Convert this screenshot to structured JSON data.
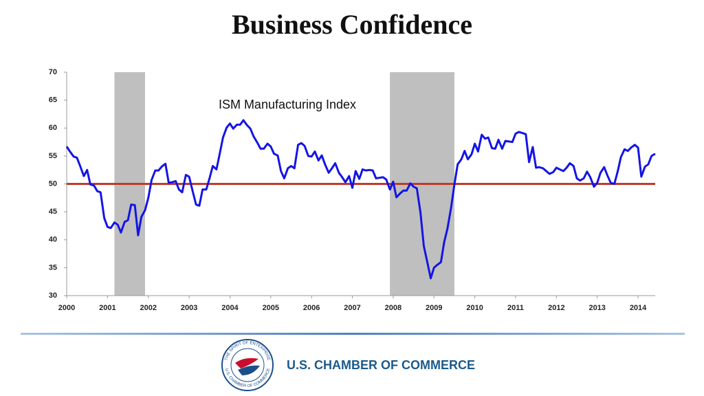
{
  "chart_data": {
    "type": "line",
    "title": "Business Confidence",
    "x": [
      2000,
      2000.08,
      2000.17,
      2000.25,
      2000.33,
      2000.42,
      2000.5,
      2000.58,
      2000.67,
      2000.75,
      2000.83,
      2000.92,
      2001,
      2001.08,
      2001.17,
      2001.25,
      2001.33,
      2001.42,
      2001.5,
      2001.58,
      2001.67,
      2001.75,
      2001.83,
      2001.92,
      2002,
      2002.08,
      2002.17,
      2002.25,
      2002.33,
      2002.42,
      2002.5,
      2002.58,
      2002.67,
      2002.75,
      2002.83,
      2002.92,
      2003,
      2003.08,
      2003.17,
      2003.25,
      2003.33,
      2003.42,
      2003.5,
      2003.58,
      2003.67,
      2003.75,
      2003.83,
      2003.92,
      2004,
      2004.08,
      2004.17,
      2004.25,
      2004.33,
      2004.42,
      2004.5,
      2004.58,
      2004.67,
      2004.75,
      2004.83,
      2004.92,
      2005,
      2005.08,
      2005.17,
      2005.25,
      2005.33,
      2005.42,
      2005.5,
      2005.58,
      2005.67,
      2005.75,
      2005.83,
      2005.92,
      2006,
      2006.08,
      2006.17,
      2006.25,
      2006.33,
      2006.42,
      2006.5,
      2006.58,
      2006.67,
      2006.75,
      2006.83,
      2006.92,
      2007,
      2007.08,
      2007.17,
      2007.25,
      2007.33,
      2007.42,
      2007.5,
      2007.58,
      2007.67,
      2007.75,
      2007.83,
      2007.92,
      2008,
      2008.08,
      2008.17,
      2008.25,
      2008.33,
      2008.42,
      2008.5,
      2008.58,
      2008.67,
      2008.75,
      2008.83,
      2008.92,
      2009,
      2009.08,
      2009.17,
      2009.25,
      2009.33,
      2009.42,
      2009.5,
      2009.58,
      2009.67,
      2009.75,
      2009.83,
      2009.92,
      2010,
      2010.08,
      2010.17,
      2010.25,
      2010.33,
      2010.42,
      2010.5,
      2010.58,
      2010.67,
      2010.75,
      2010.83,
      2010.92,
      2011,
      2011.08,
      2011.17,
      2011.25,
      2011.33,
      2011.42,
      2011.5,
      2011.58,
      2011.67,
      2011.75,
      2011.83,
      2011.92,
      2012,
      2012.08,
      2012.17,
      2012.25,
      2012.33,
      2012.42,
      2012.5,
      2012.58,
      2012.67,
      2012.75,
      2012.83,
      2012.92,
      2013,
      2013.08,
      2013.17,
      2013.25,
      2013.33,
      2013.42,
      2013.5,
      2013.58,
      2013.67,
      2013.75,
      2013.83,
      2013.92,
      2014,
      2014.08,
      2014.17,
      2014.25,
      2014.33,
      2014.42
    ],
    "series": [
      {
        "name": "ISM Manufacturing Index",
        "color": "#1414e6",
        "values": [
          56.7,
          55.8,
          54.9,
          54.7,
          53.2,
          51.4,
          52.5,
          49.9,
          49.7,
          48.7,
          48.5,
          43.9,
          42.3,
          42.1,
          43.1,
          42.7,
          41.3,
          43.2,
          43.5,
          46.3,
          46.2,
          40.8,
          44.1,
          45.3,
          47.5,
          50.7,
          52.4,
          52.4,
          53.1,
          53.6,
          50.2,
          50.3,
          50.5,
          49.0,
          48.5,
          51.6,
          51.3,
          48.9,
          46.3,
          46.1,
          49.0,
          49.0,
          51.0,
          53.2,
          52.6,
          55.4,
          58.3,
          60.1,
          60.8,
          59.9,
          60.6,
          60.6,
          61.4,
          60.5,
          59.9,
          58.5,
          57.4,
          56.3,
          56.3,
          57.2,
          56.7,
          55.4,
          55.1,
          52.3,
          51.0,
          52.8,
          53.2,
          52.8,
          57.0,
          57.3,
          56.8,
          55.0,
          54.9,
          55.8,
          54.2,
          55.1,
          53.5,
          52.0,
          52.8,
          53.7,
          52.0,
          51.2,
          50.3,
          51.4,
          49.3,
          52.3,
          50.9,
          52.6,
          52.4,
          52.5,
          52.4,
          51.0,
          51.1,
          51.2,
          50.8,
          49.0,
          50.4,
          47.6,
          48.3,
          48.8,
          48.8,
          50.1,
          49.5,
          49.2,
          44.8,
          38.9,
          36.2,
          33.1,
          35.0,
          35.5,
          36.0,
          39.6,
          42.0,
          45.8,
          49.9,
          53.5,
          54.4,
          55.9,
          54.4,
          55.3,
          57.2,
          55.8,
          58.8,
          58.1,
          58.3,
          56.4,
          56.3,
          57.9,
          56.3,
          57.7,
          57.6,
          57.5,
          59.0,
          59.3,
          59.1,
          58.9,
          53.9,
          56.6,
          52.9,
          53.0,
          52.8,
          52.3,
          51.8,
          52.1,
          52.9,
          52.6,
          52.3,
          52.9,
          53.7,
          53.2,
          51.0,
          50.6,
          51.0,
          52.2,
          51.2,
          49.5,
          50.2,
          52.0,
          53.0,
          51.5,
          50.2,
          50.0,
          52.2,
          54.8,
          56.2,
          55.9,
          56.5,
          57.0,
          56.5,
          51.3,
          53.1,
          53.5,
          55.0,
          55.4
        ]
      }
    ],
    "xlim": [
      2000,
      2014.42
    ],
    "xticks": [
      2000,
      2001,
      2002,
      2003,
      2004,
      2005,
      2006,
      2007,
      2008,
      2009,
      2010,
      2011,
      2012,
      2013,
      2014
    ],
    "ylim": [
      30,
      70
    ],
    "yticks": [
      30,
      35,
      40,
      45,
      50,
      55,
      60,
      65,
      70
    ],
    "reference_line": {
      "value": 50,
      "color": "#c0392b"
    },
    "shaded_periods": [
      {
        "start": 2001.17,
        "end": 2001.92
      },
      {
        "start": 2007.92,
        "end": 2009.5
      }
    ],
    "shade_color": "#bfbfbf"
  },
  "footer": {
    "organization": "U.S. CHAMBER OF COMMERCE",
    "logo_ring_top": "THE SPIRIT OF ENTERPRISE",
    "logo_ring_bottom": "U.S. CHAMBER OF COMMERCE"
  }
}
